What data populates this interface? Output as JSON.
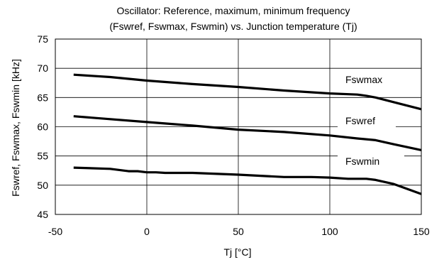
{
  "chart_data": {
    "type": "line",
    "title": [
      "Oscillator: Reference, maximum, minimum frequency",
      "(Fswref, Fswmax, Fswmin) vs. Junction temperature (Tj)"
    ],
    "xlabel": "Tj [°C]",
    "ylabel": "Fswref, Fswmax, Fswmin [kHz]",
    "xlim": [
      -50,
      150
    ],
    "ylim": [
      45,
      75
    ],
    "xticks": [
      -50,
      0,
      50,
      100,
      150
    ],
    "yticks": [
      45,
      50,
      55,
      60,
      65,
      70,
      75
    ],
    "grid": true,
    "series": [
      {
        "name": "Fswmax",
        "x": [
          -40,
          -20,
          0,
          25,
          50,
          75,
          100,
          115,
          120,
          125,
          135,
          150
        ],
        "y": [
          68.9,
          68.5,
          67.9,
          67.3,
          66.8,
          66.2,
          65.7,
          65.5,
          65.3,
          65.0,
          64.2,
          63.0
        ]
      },
      {
        "name": "Fswref",
        "x": [
          -40,
          -20,
          0,
          25,
          50,
          75,
          100,
          115,
          125,
          135,
          150
        ],
        "y": [
          61.8,
          61.3,
          60.8,
          60.2,
          59.5,
          59.1,
          58.5,
          58.0,
          57.7,
          57.0,
          56.0
        ]
      },
      {
        "name": "Fswmin",
        "x": [
          -40,
          -20,
          -10,
          -5,
          0,
          5,
          10,
          25,
          50,
          75,
          90,
          100,
          110,
          120,
          125,
          135,
          150
        ],
        "y": [
          53.0,
          52.8,
          52.4,
          52.4,
          52.2,
          52.2,
          52.1,
          52.1,
          51.8,
          51.4,
          51.4,
          51.3,
          51.1,
          51.1,
          50.9,
          50.2,
          48.5
        ]
      }
    ],
    "annotations": [
      {
        "text": "Fswmax",
        "series": "Fswmax"
      },
      {
        "text": "Fswref",
        "series": "Fswref"
      },
      {
        "text": "Fswmin",
        "series": "Fswmin"
      }
    ]
  }
}
